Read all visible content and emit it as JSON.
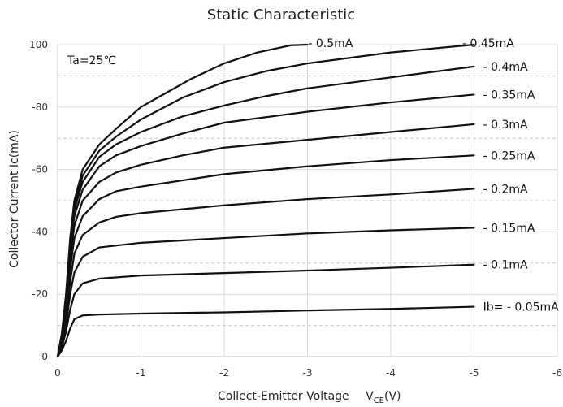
{
  "chart_data": {
    "type": "line",
    "title": "Static Characteristic",
    "xlabel": "Collect-Emitter Voltage",
    "xlabel_unit_main": "V",
    "xlabel_unit_sub": "CE",
    "xlabel_unit_tail": "(V)",
    "ylabel": "Collector  Current   Ic(mA)",
    "annotation": "Ta=25℃",
    "xlim": [
      0,
      -6
    ],
    "ylim": [
      0,
      -100
    ],
    "x_ticks": [
      0,
      -1,
      -2,
      -3,
      -4,
      -5,
      -6
    ],
    "x_tick_labels": [
      "0",
      "-1",
      "-2",
      "-3",
      "-4",
      "-5",
      "-6"
    ],
    "y_ticks": [
      0,
      -20,
      -40,
      -60,
      -80,
      -100
    ],
    "y_tick_labels": [
      "0",
      "-20",
      "-40",
      "-60",
      "-80",
      "-100"
    ],
    "y_minor_ticks": [
      -10,
      -30,
      -50,
      -70,
      -90
    ],
    "grid": true,
    "series": [
      {
        "name": "Ib= - 0.05mA",
        "x": [
          0,
          -0.05,
          -0.1,
          -0.15,
          -0.2,
          -0.3,
          -0.5,
          -1,
          -2,
          -3,
          -4,
          -5
        ],
        "y": [
          0,
          -2,
          -5,
          -9,
          -12,
          -13.2,
          -13.5,
          -13.8,
          -14.2,
          -14.8,
          -15.3,
          -16
        ]
      },
      {
        "name": "- 0.1mA",
        "x": [
          0,
          -0.05,
          -0.1,
          -0.15,
          -0.2,
          -0.3,
          -0.5,
          -1,
          -2,
          -3,
          -4,
          -5
        ],
        "y": [
          0,
          -3,
          -8,
          -15,
          -20,
          -23.5,
          -25,
          -26,
          -26.8,
          -27.6,
          -28.5,
          -29.5
        ]
      },
      {
        "name": "- 0.15mA",
        "x": [
          0,
          -0.05,
          -0.1,
          -0.15,
          -0.2,
          -0.3,
          -0.5,
          -1,
          -2,
          -3,
          -4,
          -5
        ],
        "y": [
          0,
          -4,
          -10,
          -20,
          -27,
          -32,
          -35,
          -36.5,
          -38,
          -39.5,
          -40.5,
          -41.3
        ]
      },
      {
        "name": "- 0.2mA",
        "x": [
          0,
          -0.05,
          -0.1,
          -0.15,
          -0.2,
          -0.3,
          -0.5,
          -0.7,
          -1,
          -2,
          -3,
          -4,
          -5
        ],
        "y": [
          0,
          -5,
          -12,
          -24,
          -33,
          -39,
          -43,
          -44.8,
          -46,
          -48.5,
          -50.5,
          -52,
          -53.8
        ]
      },
      {
        "name": "- 0.25mA",
        "x": [
          0,
          -0.05,
          -0.1,
          -0.15,
          -0.2,
          -0.3,
          -0.5,
          -0.7,
          -1,
          -2,
          -3,
          -4,
          -5
        ],
        "y": [
          0,
          -5,
          -14,
          -28,
          -38,
          -45,
          -50.5,
          -53,
          -54.5,
          -58.5,
          -61,
          -63,
          -64.5
        ]
      },
      {
        "name": "- 0.3mA",
        "x": [
          0,
          -0.05,
          -0.1,
          -0.15,
          -0.2,
          -0.3,
          -0.5,
          -0.7,
          -1,
          -1.5,
          -2,
          -3,
          -4,
          -5
        ],
        "y": [
          0,
          -6,
          -16,
          -31,
          -42,
          -50,
          -56,
          -59,
          -61.5,
          -64.5,
          -67,
          -69.5,
          -72,
          -74.5
        ]
      },
      {
        "name": "- 0.35mA",
        "x": [
          0,
          -0.05,
          -0.1,
          -0.15,
          -0.2,
          -0.3,
          -0.5,
          -0.7,
          -1,
          -1.5,
          -2,
          -3,
          -4,
          -5
        ],
        "y": [
          0,
          -6,
          -17,
          -34,
          -45,
          -53.5,
          -61,
          -64.5,
          -67.5,
          -71.5,
          -75,
          -78.5,
          -81.5,
          -84
        ]
      },
      {
        "name": "- 0.4mA",
        "x": [
          0,
          -0.05,
          -0.1,
          -0.15,
          -0.2,
          -0.3,
          -0.5,
          -0.7,
          -1,
          -1.5,
          -2,
          -2.5,
          -3,
          -4,
          -5
        ],
        "y": [
          0,
          -7,
          -18,
          -36,
          -47,
          -56,
          -64,
          -68,
          -72,
          -77,
          -80.5,
          -83.5,
          -86,
          -89.5,
          -93
        ]
      },
      {
        "name": "- 0.45mA",
        "x": [
          0,
          -0.05,
          -0.1,
          -0.15,
          -0.2,
          -0.3,
          -0.5,
          -0.7,
          -1,
          -1.5,
          -2,
          -2.5,
          -3,
          -4,
          -5
        ],
        "y": [
          0,
          -7,
          -19,
          -37,
          -48,
          -58,
          -66,
          -70.5,
          -76,
          -83,
          -88,
          -91.5,
          -94,
          -97.5,
          -100
        ]
      },
      {
        "name": "- 0.5mA",
        "x": [
          0,
          -0.05,
          -0.1,
          -0.15,
          -0.2,
          -0.3,
          -0.5,
          -0.7,
          -1,
          -1.3,
          -1.6,
          -2,
          -2.4,
          -2.8,
          -3
        ],
        "y": [
          0,
          -7.5,
          -20,
          -38,
          -50,
          -60,
          -68,
          -73,
          -80,
          -84.5,
          -89,
          -94,
          -97.5,
          -99.8,
          -100
        ]
      }
    ],
    "label_anchor_x": [
      -5.05,
      -5.05,
      -5.05,
      -5.05,
      -5.05,
      -5.05,
      -5.05,
      -5.05,
      -4.8,
      -2.95
    ],
    "label_anchor_y": [
      -16,
      -29.5,
      -41.3,
      -53.8,
      -64.5,
      -74.5,
      -84,
      -93,
      -100.5,
      -100.5
    ]
  }
}
